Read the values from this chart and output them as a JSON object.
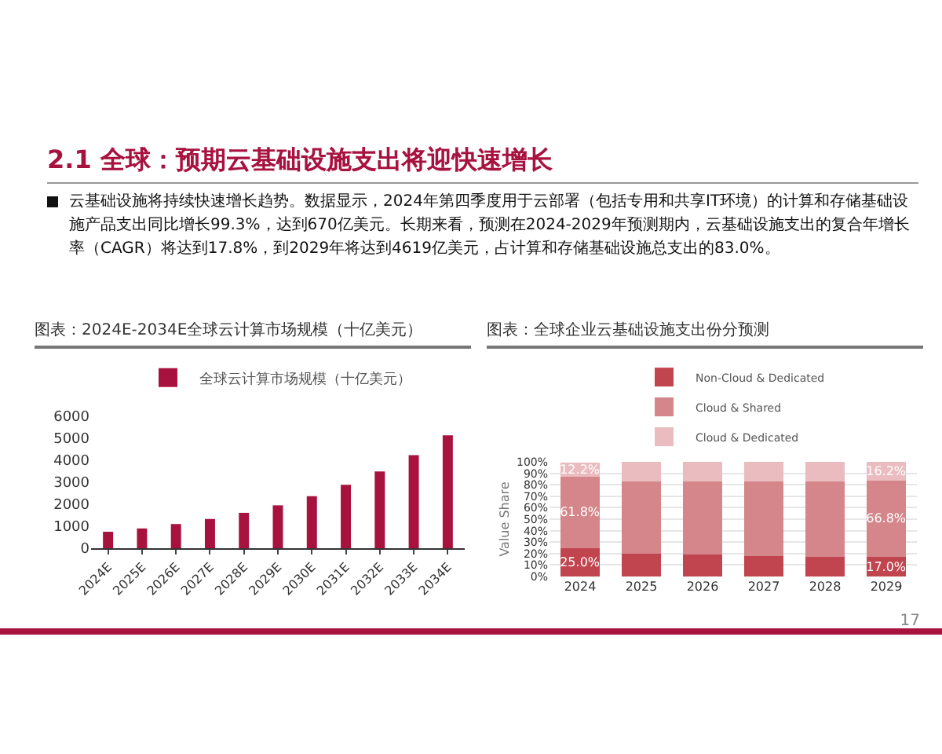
{
  "chart_data": [
    {
      "type": "bar",
      "title": "图表：2024E-2034E全球云计算市场规模（十亿美元）",
      "annotations": [
        "2.1 全球：预期云基础设施支出将迎快速增长",
        "云基础设施将持续快速增长趋势。数据显示，2024年第四季度用于云部署（包括专用和共享IT环境）的计算和存储基础设施产品支出同比增长99.3%，达到670亿美元。长期来看，预测在2024-2029年预测期内，云基础设施支出的复合年增长率（CAGR）将达到17.8%，到2029年将达到4619亿美元，占计算和存储基础设施总支出的83.0%。"
      ],
      "categories": [
        "2024E",
        "2025E",
        "2026E",
        "2027E",
        "2028E",
        "2029E",
        "2030E",
        "2031E",
        "2032E",
        "2033E",
        "2034E"
      ],
      "series": [
        {
          "name": "全球云计算市场规模（十亿美元）",
          "color": "#a8123e",
          "values": [
            750,
            900,
            1100,
            1330,
            1610,
            1950,
            2370,
            2880,
            3490,
            4230,
            5130
          ]
        }
      ],
      "ylim": [
        0,
        6000
      ],
      "yticks": [
        0,
        1000,
        2000,
        3000,
        4000,
        5000,
        6000
      ],
      "grid": false,
      "legend": "top"
    },
    {
      "type": "bar",
      "title": "图表：全球企业云基础设施支出份分预测",
      "ylabel": "Value Share",
      "stacked": true,
      "annotations": [
        "17"
      ],
      "categories": [
        "2024",
        "2025",
        "2026",
        "2027",
        "2028",
        "2029"
      ],
      "series": [
        {
          "name": "Non-Cloud & Dedicated",
          "color": "#c0454f",
          "values": [
            25.0,
            20,
            19,
            18,
            17,
            17.0
          ],
          "value_labels": [
            "25.0%",
            null,
            null,
            null,
            null,
            "17.0%"
          ]
        },
        {
          "name": "Cloud & Shared",
          "color": "#d4868a",
          "values": [
            61.8,
            63,
            64,
            65,
            66,
            66.8
          ],
          "value_labels": [
            "61.8%",
            null,
            null,
            null,
            null,
            "66.8%"
          ]
        },
        {
          "name": "Cloud & Dedicated",
          "color": "#ebbcbf",
          "values": [
            12.2,
            17,
            17,
            17,
            17,
            16.2
          ],
          "value_labels": [
            "12.2%",
            null,
            null,
            null,
            null,
            "16.2%"
          ]
        }
      ],
      "ylim": [
        0,
        100
      ],
      "yticks": [
        {
          "value": 0,
          "label": "0%"
        },
        {
          "value": 10,
          "label": "10%"
        },
        {
          "value": 20,
          "label": "20%"
        },
        {
          "value": 30,
          "label": "30%"
        },
        {
          "value": 40,
          "label": "40%"
        },
        {
          "value": 50,
          "label": "50%"
        },
        {
          "value": 60,
          "label": "60%"
        },
        {
          "value": 70,
          "label": "70%"
        },
        {
          "value": 80,
          "label": "80%"
        },
        {
          "value": 90,
          "label": "90%"
        },
        {
          "value": 100,
          "label": "100%"
        }
      ],
      "grid": "y",
      "legend": "top"
    }
  ]
}
